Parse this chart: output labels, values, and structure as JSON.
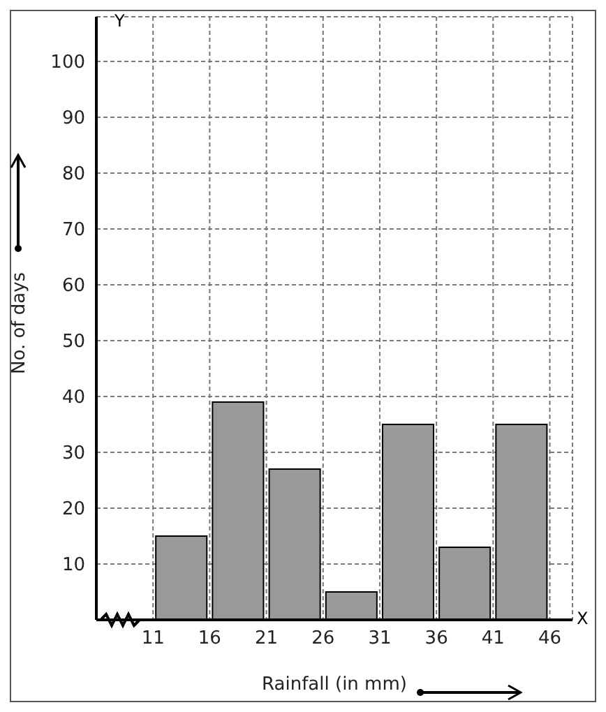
{
  "chart_data": {
    "type": "histogram",
    "xlabel": "Rainfall (in mm)",
    "ylabel": "No. of days",
    "bins": [
      11,
      16,
      21,
      26,
      31,
      36,
      41,
      46
    ],
    "values": [
      15,
      39,
      27,
      5,
      35,
      13,
      35
    ],
    "color": "#999999",
    "xlim": [
      6,
      48
    ],
    "xticks": [
      11,
      16,
      21,
      26,
      31,
      36,
      41,
      46
    ],
    "ylim": [
      0,
      108
    ],
    "yticks": [
      10,
      20,
      30,
      40,
      50,
      60,
      70,
      80,
      90,
      100
    ],
    "grid": true,
    "annotations": [
      "X",
      "Y"
    ]
  }
}
